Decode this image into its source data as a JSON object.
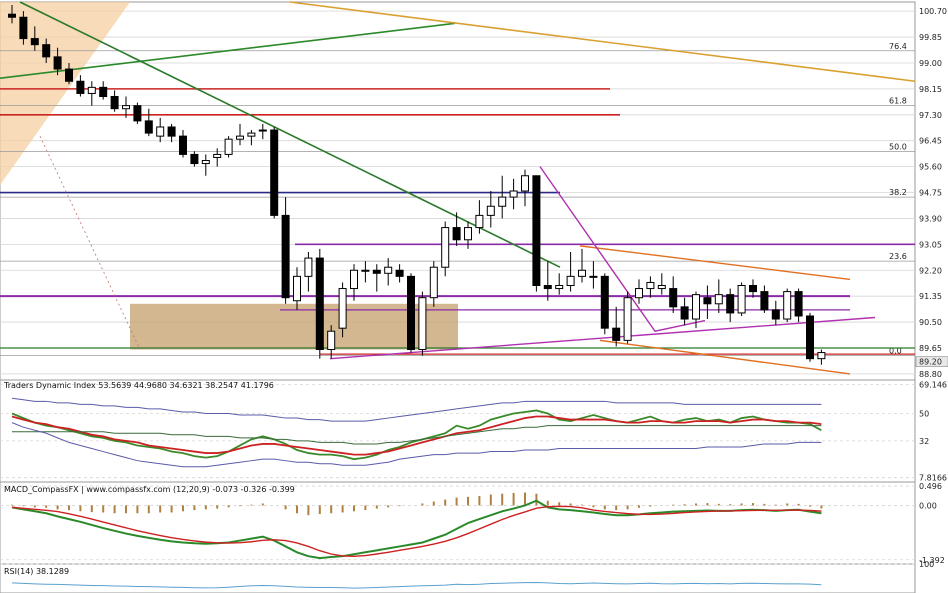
{
  "chart_data": {
    "type": "candlestick",
    "main": {
      "y_ticks": [
        "100.70",
        "99.85",
        "99.00",
        "98.15",
        "97.30",
        "96.45",
        "95.60",
        "94.75",
        "93.90",
        "93.05",
        "92.20",
        "91.35",
        "90.50",
        "89.65",
        "88.80"
      ],
      "ylim": [
        88.6,
        101.0
      ],
      "current_price": "89.20",
      "fib_labels": [
        "76.4",
        "61.8",
        "50.0",
        "38.2",
        "23.6",
        "0.0"
      ],
      "candles": [
        [
          100.6,
          100.9,
          100.3,
          100.5
        ],
        [
          100.5,
          100.7,
          99.6,
          99.8
        ],
        [
          99.8,
          100.2,
          99.4,
          99.6
        ],
        [
          99.6,
          99.8,
          99.0,
          99.2
        ],
        [
          99.2,
          99.5,
          98.6,
          98.8
        ],
        [
          98.8,
          99.0,
          98.3,
          98.4
        ],
        [
          98.4,
          98.6,
          97.9,
          98.0
        ],
        [
          98.0,
          98.4,
          97.6,
          98.2
        ],
        [
          98.2,
          98.4,
          97.8,
          97.9
        ],
        [
          97.9,
          98.1,
          97.4,
          97.5
        ],
        [
          97.5,
          97.9,
          97.2,
          97.6
        ],
        [
          97.6,
          97.7,
          97.0,
          97.1
        ],
        [
          97.1,
          97.5,
          96.6,
          96.7
        ],
        [
          96.6,
          97.2,
          96.4,
          96.9
        ],
        [
          96.9,
          97.0,
          96.4,
          96.6
        ],
        [
          96.6,
          96.8,
          95.9,
          96.0
        ],
        [
          96.0,
          96.1,
          95.6,
          95.7
        ],
        [
          95.7,
          96.0,
          95.3,
          95.8
        ],
        [
          95.9,
          96.2,
          95.6,
          96.0
        ],
        [
          96.0,
          96.6,
          95.9,
          96.5
        ],
        [
          96.5,
          97.0,
          96.3,
          96.6
        ],
        [
          96.6,
          96.8,
          96.3,
          96.7
        ],
        [
          96.8,
          97.0,
          96.5,
          96.8
        ],
        [
          96.8,
          96.9,
          93.9,
          94.0
        ],
        [
          94.0,
          94.6,
          91.1,
          91.3
        ],
        [
          91.2,
          92.3,
          90.9,
          92.0
        ],
        [
          92.0,
          92.8,
          91.5,
          92.6
        ],
        [
          92.6,
          92.9,
          89.3,
          89.6
        ],
        [
          89.6,
          90.4,
          89.3,
          90.2
        ],
        [
          90.3,
          91.8,
          90.0,
          91.6
        ],
        [
          91.6,
          92.4,
          91.2,
          92.2
        ],
        [
          92.2,
          92.5,
          91.8,
          92.2
        ],
        [
          92.2,
          92.4,
          91.5,
          92.1
        ],
        [
          92.1,
          92.6,
          91.7,
          92.3
        ],
        [
          92.2,
          92.4,
          91.8,
          92.0
        ],
        [
          92.0,
          92.1,
          89.5,
          89.6
        ],
        [
          89.6,
          91.5,
          89.4,
          91.3
        ],
        [
          91.3,
          92.5,
          91.0,
          92.3
        ],
        [
          92.3,
          93.8,
          92.0,
          93.6
        ],
        [
          93.6,
          94.1,
          93.0,
          93.2
        ],
        [
          93.2,
          93.8,
          92.9,
          93.6
        ],
        [
          93.6,
          94.5,
          93.4,
          94.0
        ],
        [
          94.0,
          94.8,
          93.6,
          94.3
        ],
        [
          94.3,
          95.3,
          93.9,
          94.6
        ],
        [
          94.6,
          95.2,
          94.2,
          94.8
        ],
        [
          94.8,
          95.5,
          94.3,
          95.3
        ],
        [
          95.3,
          95.3,
          91.5,
          91.7
        ],
        [
          91.7,
          92.5,
          91.2,
          91.6
        ],
        [
          91.6,
          92.1,
          91.4,
          91.7
        ],
        [
          91.7,
          92.8,
          91.5,
          92.0
        ],
        [
          92.0,
          92.9,
          91.8,
          92.2
        ],
        [
          92.0,
          92.5,
          91.6,
          92.0
        ],
        [
          92.0,
          92.1,
          90.1,
          90.3
        ],
        [
          90.3,
          91.0,
          89.7,
          89.9
        ],
        [
          89.9,
          91.5,
          89.8,
          91.3
        ],
        [
          91.3,
          91.9,
          91.1,
          91.6
        ],
        [
          91.6,
          92.0,
          91.3,
          91.8
        ],
        [
          91.6,
          92.1,
          91.4,
          91.7
        ],
        [
          91.6,
          92.0,
          90.8,
          91.0
        ],
        [
          91.0,
          91.3,
          90.4,
          90.6
        ],
        [
          90.6,
          91.5,
          90.3,
          91.4
        ],
        [
          91.3,
          91.7,
          90.6,
          91.1
        ],
        [
          91.1,
          91.9,
          90.8,
          91.4
        ],
        [
          91.4,
          91.6,
          90.5,
          90.8
        ],
        [
          90.8,
          91.8,
          90.7,
          91.7
        ],
        [
          91.7,
          91.9,
          91.3,
          91.5
        ],
        [
          91.5,
          91.7,
          90.8,
          90.9
        ],
        [
          90.9,
          91.2,
          90.4,
          90.6
        ],
        [
          90.6,
          91.6,
          90.5,
          91.5
        ],
        [
          91.5,
          91.6,
          90.5,
          90.7
        ],
        [
          90.7,
          90.8,
          89.2,
          89.3
        ],
        [
          89.3,
          89.6,
          89.1,
          89.5
        ]
      ]
    },
    "tdi": {
      "label": "Traders Dynamic Index 53.5639 44.9680 34.6321 38.2547 41.1796",
      "y_ticks": [
        "69.1461",
        "50",
        "32",
        "7.8166"
      ],
      "ylim": [
        5,
        72
      ],
      "series": [
        {
          "color": "#3a8a2a",
          "values": [
            50,
            47,
            44,
            42,
            41,
            39,
            37,
            35,
            34,
            32,
            31,
            29,
            28,
            27,
            25,
            24,
            22,
            21,
            22,
            25,
            29,
            33,
            35,
            33,
            30,
            26,
            24,
            23,
            23,
            22,
            20,
            21,
            23,
            26,
            28,
            31,
            33,
            35,
            37,
            42,
            40,
            42,
            46,
            48,
            50,
            51,
            52,
            50,
            46,
            45,
            47,
            49,
            47,
            45,
            44,
            46,
            48,
            45,
            44,
            46,
            47,
            45,
            46,
            44,
            47,
            48,
            46,
            45,
            44,
            44,
            43,
            39
          ]
        },
        {
          "color": "#cc2222",
          "values": [
            48,
            46,
            44,
            43,
            41,
            40,
            38,
            36,
            35,
            33,
            32,
            31,
            29,
            28,
            27,
            26,
            25,
            24,
            24,
            25,
            27,
            29,
            30,
            30,
            29,
            28,
            27,
            26,
            25,
            24,
            23,
            23,
            24,
            25,
            27,
            29,
            31,
            33,
            35,
            37,
            38,
            39,
            41,
            43,
            45,
            47,
            48,
            48,
            47,
            46,
            46,
            46,
            46,
            45,
            44,
            44,
            45,
            45,
            44,
            44,
            45,
            45,
            45,
            44,
            45,
            46,
            46,
            45,
            45,
            44,
            44,
            43
          ]
        },
        {
          "color": "#3a6a3a",
          "values": [
            38,
            38,
            38,
            38,
            38,
            38,
            38,
            38,
            38,
            37,
            37,
            37,
            37,
            37,
            36,
            36,
            36,
            35,
            35,
            35,
            34,
            34,
            34,
            33,
            33,
            32,
            32,
            31,
            31,
            31,
            30,
            30,
            30,
            31,
            31,
            32,
            33,
            34,
            35,
            36,
            37,
            38,
            39,
            40,
            40,
            41,
            41,
            42,
            42,
            42,
            42,
            42,
            42,
            42,
            42,
            42,
            42,
            42,
            42,
            42,
            42,
            42,
            42,
            42,
            42,
            42,
            42,
            42,
            42,
            42,
            42,
            42
          ]
        },
        {
          "color": "#5a5aaa",
          "values": [
            60,
            59,
            58,
            58,
            57,
            57,
            56,
            56,
            55,
            55,
            54,
            54,
            53,
            53,
            52,
            51,
            51,
            50,
            50,
            50,
            49,
            49,
            49,
            48,
            47,
            47,
            46,
            46,
            45,
            45,
            45,
            45,
            46,
            47,
            48,
            49,
            50,
            51,
            52,
            53,
            54,
            55,
            56,
            57,
            57,
            58,
            58,
            58,
            58,
            58,
            58,
            58,
            58,
            57,
            57,
            57,
            57,
            57,
            57,
            56,
            56,
            56,
            56,
            56,
            56,
            56,
            56,
            56,
            56,
            56,
            56,
            56
          ]
        },
        {
          "color": "#5a5aaa",
          "values": [
            44,
            41,
            39,
            37,
            34,
            31,
            29,
            27,
            25,
            23,
            21,
            19,
            18,
            17,
            16,
            15,
            15,
            15,
            16,
            17,
            18,
            19,
            20,
            20,
            19,
            18,
            18,
            17,
            17,
            16,
            16,
            16,
            17,
            18,
            20,
            21,
            22,
            23,
            23,
            24,
            24,
            24,
            25,
            25,
            25,
            26,
            26,
            26,
            27,
            27,
            27,
            27,
            27,
            27,
            27,
            27,
            27,
            27,
            27,
            27,
            27,
            28,
            28,
            28,
            28,
            29,
            30,
            30,
            30,
            31,
            31,
            31
          ]
        }
      ]
    },
    "macd": {
      "label": "MACD_CompassFX | www.compassfx.com  (12,20,9) -0.073 -0.326 -0.399",
      "y_ticks": [
        "0.496",
        "0.00",
        "-1.392"
      ],
      "ylim": [
        -1.5,
        0.6
      ],
      "histogram": [
        0.02,
        -0.02,
        -0.05,
        -0.06,
        -0.1,
        -0.12,
        -0.15,
        -0.17,
        -0.18,
        -0.2,
        -0.2,
        -0.2,
        -0.2,
        -0.18,
        -0.18,
        -0.15,
        -0.12,
        -0.1,
        -0.08,
        -0.05,
        -0.02,
        0.02,
        0.05,
        0.0,
        -0.1,
        -0.2,
        -0.25,
        -0.22,
        -0.2,
        -0.18,
        -0.15,
        -0.12,
        -0.08,
        -0.05,
        -0.02,
        0.0,
        0.05,
        0.1,
        0.15,
        0.2,
        0.22,
        0.24,
        0.28,
        0.3,
        0.32,
        0.33,
        0.3,
        0.12,
        0.08,
        0.05,
        0.02,
        -0.05,
        -0.1,
        -0.12,
        -0.1,
        -0.06,
        -0.03,
        0.0,
        0.02,
        0.03,
        0.05,
        0.06,
        0.04,
        0.03,
        0.05,
        0.06,
        0.04,
        0.02,
        0.05,
        0.04,
        -0.03,
        -0.08
      ],
      "line1": [
        -0.05,
        -0.1,
        -0.15,
        -0.2,
        -0.28,
        -0.35,
        -0.42,
        -0.5,
        -0.58,
        -0.65,
        -0.72,
        -0.78,
        -0.83,
        -0.88,
        -0.92,
        -0.95,
        -0.97,
        -0.98,
        -0.97,
        -0.95,
        -0.9,
        -0.85,
        -0.8,
        -0.9,
        -1.05,
        -1.2,
        -1.3,
        -1.35,
        -1.32,
        -1.3,
        -1.25,
        -1.2,
        -1.15,
        -1.1,
        -1.05,
        -1.0,
        -0.95,
        -0.85,
        -0.75,
        -0.6,
        -0.45,
        -0.35,
        -0.25,
        -0.15,
        -0.08,
        0.0,
        0.12,
        -0.05,
        -0.1,
        -0.12,
        -0.15,
        -0.18,
        -0.22,
        -0.25,
        -0.25,
        -0.23,
        -0.2,
        -0.18,
        -0.16,
        -0.15,
        -0.14,
        -0.13,
        -0.14,
        -0.14,
        -0.12,
        -0.11,
        -0.12,
        -0.14,
        -0.12,
        -0.11,
        -0.16,
        -0.2
      ]
    },
    "rsi": {
      "label": "RSI(14) 38.1289",
      "y_ticks": [
        "100"
      ],
      "ylim": [
        0,
        100
      ]
    }
  }
}
